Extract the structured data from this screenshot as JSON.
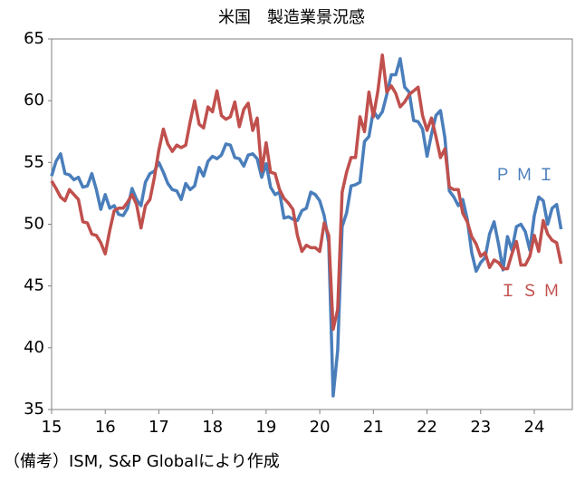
{
  "chart_data": {
    "type": "line",
    "title": "米国　製造業景況感",
    "note": "（備考）ISM, S&P Globalにより作成",
    "categories": [
      "15",
      null,
      null,
      null,
      null,
      null,
      null,
      null,
      null,
      null,
      null,
      null,
      "16",
      null,
      null,
      null,
      null,
      null,
      null,
      null,
      null,
      null,
      null,
      null,
      "17",
      null,
      null,
      null,
      null,
      null,
      null,
      null,
      null,
      null,
      null,
      null,
      "18",
      null,
      null,
      null,
      null,
      null,
      null,
      null,
      null,
      null,
      null,
      null,
      "19",
      null,
      null,
      null,
      null,
      null,
      null,
      null,
      null,
      null,
      null,
      null,
      "20",
      null,
      null,
      null,
      null,
      null,
      null,
      null,
      null,
      null,
      null,
      null,
      "21",
      null,
      null,
      null,
      null,
      null,
      null,
      null,
      null,
      null,
      null,
      null,
      "22",
      null,
      null,
      null,
      null,
      null,
      null,
      null,
      null,
      null,
      null,
      null,
      "23",
      null,
      null,
      null,
      null,
      null,
      null,
      null,
      null,
      null,
      null,
      null,
      "24",
      null,
      null,
      null,
      null,
      null,
      null
    ],
    "series": [
      {
        "name": "ＰＭＩ",
        "color": "#4a7ebb",
        "values": [
          53.9,
          55.1,
          55.7,
          54.1,
          54.0,
          53.6,
          53.8,
          53.0,
          53.1,
          54.1,
          52.8,
          51.2,
          52.4,
          51.3,
          51.5,
          50.8,
          50.7,
          51.3,
          52.9,
          52.0,
          51.5,
          53.4,
          54.1,
          54.3,
          55.0,
          54.2,
          53.3,
          52.8,
          52.7,
          52.0,
          53.3,
          52.8,
          53.1,
          54.6,
          53.9,
          55.1,
          55.5,
          55.3,
          55.6,
          56.5,
          56.4,
          55.4,
          55.3,
          54.7,
          55.6,
          55.7,
          55.3,
          53.8,
          54.9,
          53.0,
          52.4,
          52.6,
          50.5,
          50.6,
          50.4,
          50.3,
          51.1,
          51.3,
          52.6,
          52.4,
          51.9,
          50.7,
          48.5,
          36.1,
          39.8,
          49.8,
          50.9,
          53.1,
          53.2,
          53.4,
          56.7,
          57.1,
          59.2,
          58.6,
          59.1,
          60.5,
          62.1,
          62.1,
          63.4,
          61.1,
          60.7,
          58.4,
          58.3,
          57.7,
          55.5,
          57.3,
          58.8,
          59.2,
          57.0,
          52.7,
          52.2,
          51.5,
          52.0,
          50.4,
          47.7,
          46.2,
          46.9,
          47.3,
          49.2,
          50.2,
          48.4,
          46.3,
          49.0,
          47.9,
          49.8,
          50.0,
          49.4,
          47.9,
          50.7,
          52.2,
          51.9,
          50.0,
          51.3,
          51.6,
          49.6
        ]
      },
      {
        "name": "ＩＳＭ",
        "color": "#c0504d",
        "values": [
          53.5,
          52.9,
          52.2,
          51.9,
          52.8,
          52.4,
          52.0,
          50.2,
          50.1,
          49.2,
          49.1,
          48.5,
          47.6,
          49.5,
          51.1,
          51.3,
          51.3,
          51.8,
          52.4,
          51.6,
          49.7,
          51.5,
          52.0,
          53.8,
          56.0,
          57.7,
          56.5,
          55.9,
          56.4,
          56.2,
          56.4,
          58.3,
          60.0,
          58.1,
          57.8,
          59.5,
          59.1,
          60.8,
          58.8,
          58.5,
          58.7,
          59.9,
          57.9,
          59.3,
          59.8,
          57.6,
          58.6,
          54.3,
          56.6,
          54.2,
          54.1,
          52.8,
          52.1,
          51.7,
          51.2,
          49.1,
          47.8,
          48.3,
          48.1,
          48.1,
          47.8,
          50.1,
          49.1,
          41.5,
          43.1,
          52.6,
          54.2,
          55.4,
          55.4,
          58.7,
          57.5,
          60.7,
          58.7,
          60.8,
          63.7,
          60.7,
          61.2,
          60.6,
          59.5,
          59.9,
          60.5,
          60.8,
          61.1,
          58.8,
          57.6,
          58.6,
          57.1,
          55.4,
          56.1,
          53.0,
          52.8,
          52.8,
          50.9,
          50.2,
          49.0,
          48.4,
          47.4,
          47.7,
          46.5,
          47.1,
          46.9,
          46.4,
          46.4,
          47.6,
          48.6,
          46.7,
          46.7,
          47.4,
          49.1,
          47.8,
          50.3,
          49.2,
          48.7,
          48.5,
          46.8
        ]
      }
    ],
    "ylim": [
      35,
      65
    ],
    "yticks": [
      35,
      40,
      45,
      50,
      55,
      60,
      65
    ]
  }
}
